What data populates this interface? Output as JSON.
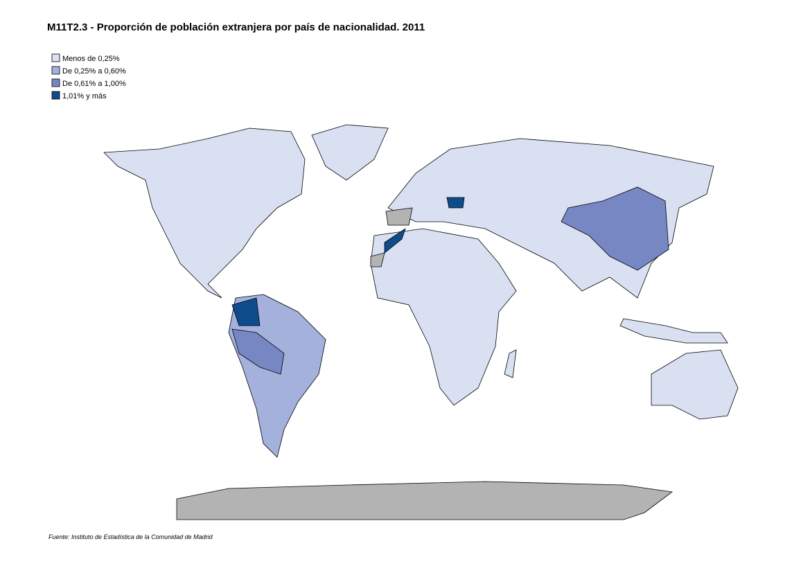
{
  "title": "M11T2.3 - Proporción de población extranjera por país de nacionalidad. 2011",
  "legend": {
    "items": [
      {
        "label": "Menos de 0,25%",
        "color": "#d8e0f2"
      },
      {
        "label": "De 0,25% a 0,60%",
        "color": "#a3b1dc"
      },
      {
        "label": "De 0,61% a 1,00%",
        "color": "#7787c4"
      },
      {
        "label": "1,01% y más",
        "color": "#0e4c8c"
      }
    ]
  },
  "source": "Fuente: Instituto de Estadística de la Comunidad de Madrid"
}
